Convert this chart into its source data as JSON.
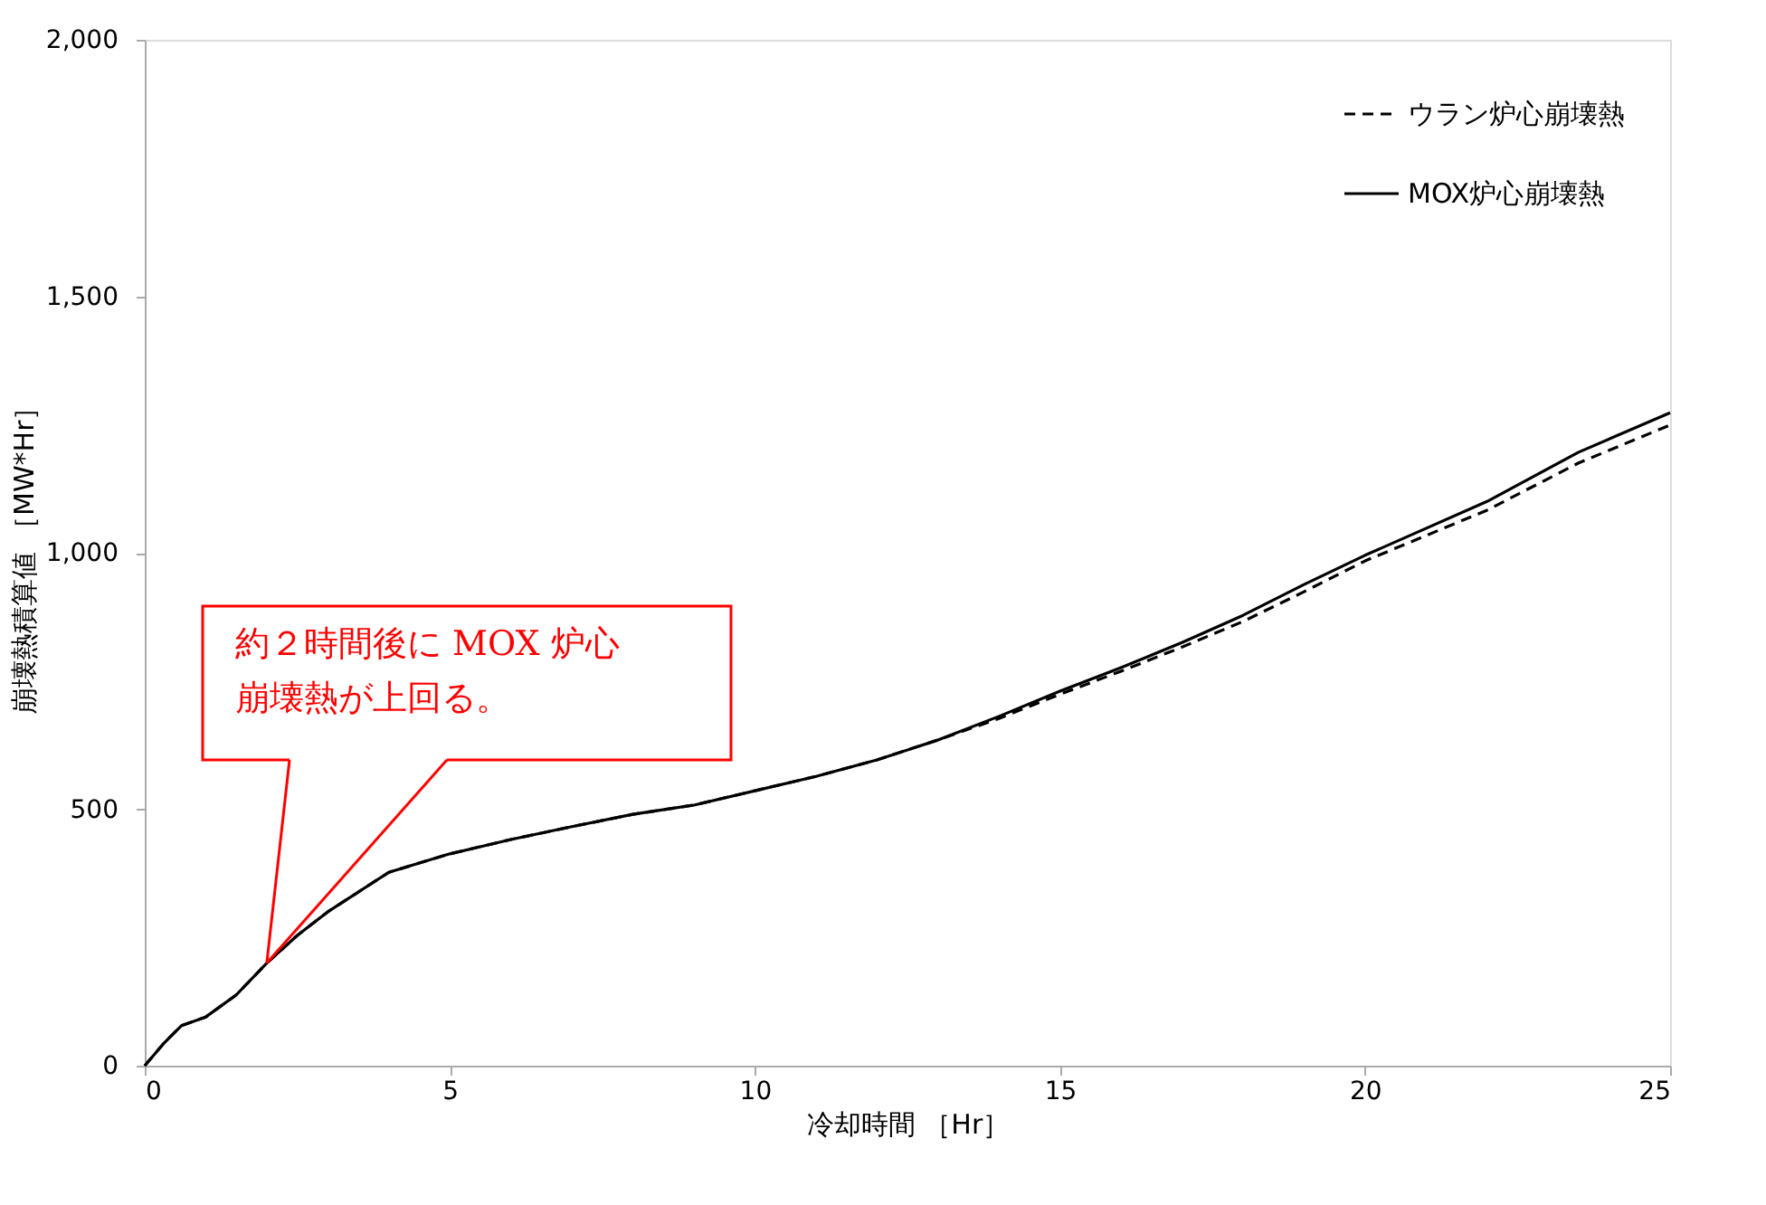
{
  "chart_data": {
    "type": "line",
    "xlabel": "冷却時間 ［Hr］",
    "ylabel": "崩壊熱積算値 ［MW*Hr］",
    "xlim": [
      0,
      25
    ],
    "xticks": [
      0,
      5,
      10,
      15,
      20,
      25
    ],
    "ylim": [
      0,
      2000
    ],
    "yticks": [
      0,
      {
        "value": 500,
        "label": "500"
      },
      {
        "value": 1000,
        "label": "1,000"
      },
      {
        "value": 1500,
        "label": "1,500"
      },
      {
        "value": 2000,
        "label": "2,000"
      }
    ],
    "grid": false,
    "legend": "top right",
    "marker": "none",
    "x": [
      0,
      0.3,
      0.6,
      1,
      1.5,
      2,
      2.5,
      3,
      4,
      5,
      6,
      7,
      8,
      9,
      10,
      11,
      12,
      13,
      14,
      15,
      16,
      17,
      18,
      19,
      20,
      22,
      23.5,
      25
    ],
    "series": [
      {
        "name": "ウラン炉心崩壊熱",
        "color": "#000000",
        "line_style": "dashed",
        "values": [
          0,
          42,
          78,
          95,
          138,
          200,
          254,
          300,
          377,
          413,
          441,
          466,
          490,
          508,
          536,
          564,
          596,
          635,
          677,
          724,
          769,
          816,
          866,
          924,
          984,
          1083,
          1175,
          1249
        ]
      },
      {
        "name": "MOX炉心崩壊熱",
        "color": "#000000",
        "line_style": "solid",
        "values": [
          0,
          42,
          78,
          95,
          138,
          200,
          254,
          300,
          377,
          413,
          441,
          466,
          490,
          508,
          536,
          564,
          596,
          635,
          681,
          730,
          776,
          825,
          878,
          938,
          995,
          1100,
          1196,
          1273
        ]
      }
    ],
    "annotations": [
      {
        "text": "約２時間後に MOX 炉心崩壊熱が上回る。",
        "x": 2,
        "y": 200
      }
    ]
  }
}
